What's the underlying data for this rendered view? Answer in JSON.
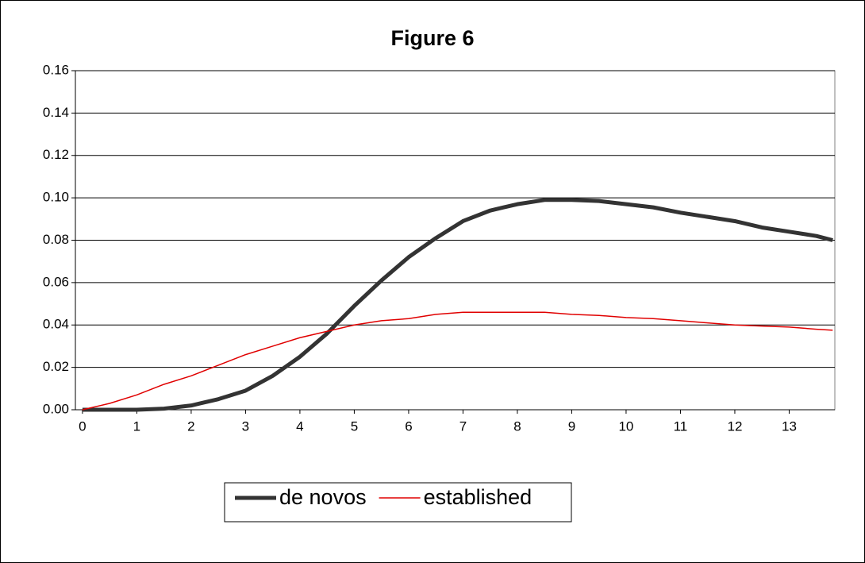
{
  "chart_data": {
    "type": "line",
    "title": "Figure 6",
    "x": [
      0,
      0.5,
      1,
      1.5,
      2,
      2.5,
      3,
      3.5,
      4,
      4.5,
      5,
      5.5,
      6,
      6.5,
      7,
      7.5,
      8,
      8.5,
      9,
      9.5,
      10,
      10.5,
      11,
      11.5,
      12,
      12.5,
      13,
      13.5,
      13.8
    ],
    "series": [
      {
        "name": "de novos",
        "color": "#333333",
        "width": 5,
        "values": [
          0,
          0,
          0,
          0.0005,
          0.002,
          0.005,
          0.009,
          0.016,
          0.025,
          0.036,
          0.049,
          0.061,
          0.072,
          0.081,
          0.089,
          0.094,
          0.097,
          0.099,
          0.099,
          0.0985,
          0.097,
          0.0955,
          0.093,
          0.091,
          0.089,
          0.086,
          0.084,
          0.082,
          0.08
        ]
      },
      {
        "name": "established",
        "color": "#e00000",
        "width": 1.5,
        "values": [
          0,
          0.003,
          0.007,
          0.012,
          0.016,
          0.021,
          0.026,
          0.03,
          0.034,
          0.037,
          0.04,
          0.042,
          0.043,
          0.045,
          0.046,
          0.046,
          0.046,
          0.046,
          0.045,
          0.0445,
          0.0435,
          0.043,
          0.042,
          0.041,
          0.04,
          0.0395,
          0.039,
          0.038,
          0.0375
        ]
      }
    ],
    "xlim": [
      -0.13,
      13.84
    ],
    "xticks": [
      0,
      1,
      2,
      3,
      4,
      5,
      6,
      7,
      8,
      9,
      10,
      11,
      12,
      13
    ],
    "ylim": [
      0,
      0.16
    ],
    "yticks": [
      {
        "value": 0,
        "label": "0.00"
      },
      0.02,
      0.04,
      0.06,
      0.08,
      {
        "value": 0.1,
        "label": "0.10"
      },
      0.12,
      0.14,
      0.16
    ],
    "grid": true,
    "legend": "bottom"
  }
}
